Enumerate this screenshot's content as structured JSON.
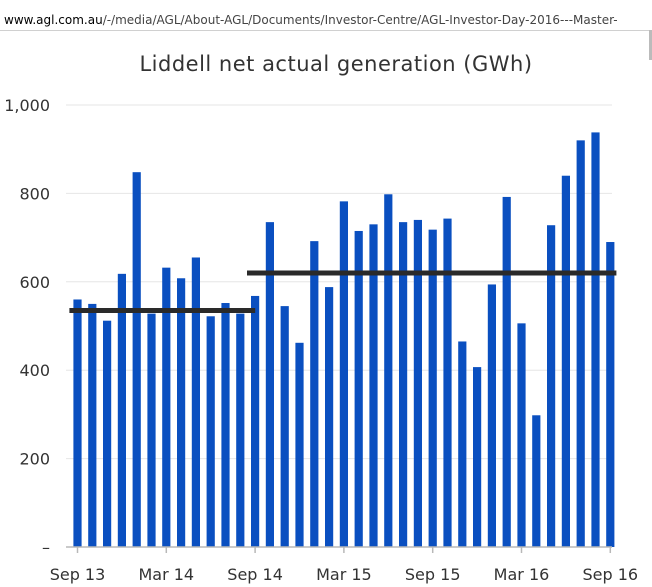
{
  "browser": {
    "url_domain": "www.agl.com.au",
    "url_path": "/-/media/AGL/About-AGL/Documents/Investor-Centre/AGL-Investor-Day-2016---Master-"
  },
  "chart_data": {
    "type": "bar",
    "title": "Liddell net actual generation (GWh)",
    "xlabel": "",
    "ylabel": "",
    "ylim": [
      0,
      1000
    ],
    "yticks": [
      0,
      200,
      400,
      600,
      800,
      1000
    ],
    "ytick_labels": [
      "–",
      "200",
      "400",
      "600",
      "800",
      "1,000"
    ],
    "xtick_labels": [
      "Sep 13",
      "Mar 14",
      "Sep 14",
      "Mar 15",
      "Sep 15",
      "Mar 16",
      "Sep 16"
    ],
    "categories": [
      "Sep 13",
      "Oct 13",
      "Nov 13",
      "Dec 13",
      "Jan 14",
      "Feb 14",
      "Mar 14",
      "Apr 14",
      "May 14",
      "Jun 14",
      "Jul 14",
      "Aug 14",
      "Sep 14",
      "Oct 14",
      "Nov 14",
      "Dec 14",
      "Jan 15",
      "Feb 15",
      "Mar 15",
      "Apr 15",
      "May 15",
      "Jun 15",
      "Jul 15",
      "Aug 15",
      "Sep 15",
      "Oct 15",
      "Nov 15",
      "Dec 15",
      "Jan 16",
      "Feb 16",
      "Mar 16",
      "Apr 16",
      "May 16",
      "Jun 16",
      "Jul 16",
      "Aug 16",
      "Sep 16"
    ],
    "values": [
      560,
      550,
      512,
      618,
      848,
      528,
      632,
      608,
      655,
      522,
      552,
      528,
      568,
      735,
      545,
      462,
      692,
      588,
      782,
      715,
      730,
      798,
      735,
      740,
      718,
      743,
      465,
      407,
      594,
      792,
      506,
      298,
      728,
      840,
      920,
      938,
      690
    ],
    "bar_color": "#0a4fc0",
    "averages": [
      {
        "from_index": 0,
        "to_index": 12,
        "value": 535
      },
      {
        "from_index": 12,
        "to_index": 36,
        "value": 620
      }
    ],
    "average_color": "#2a2a2a",
    "grid": "horizontal"
  }
}
